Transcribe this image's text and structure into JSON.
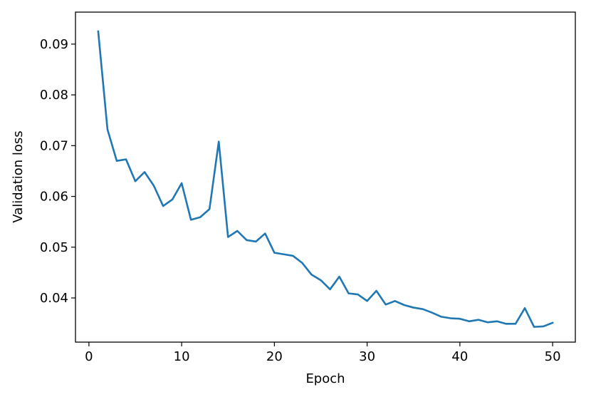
{
  "chart_data": {
    "type": "line",
    "title": "",
    "xlabel": "Epoch",
    "ylabel": "Validation loss",
    "xlim": [
      -1.45,
      52.45
    ],
    "ylim": [
      0.0313,
      0.0963
    ],
    "xticks": [
      0,
      10,
      20,
      30,
      40,
      50
    ],
    "xtick_labels": [
      "0",
      "10",
      "20",
      "30",
      "40",
      "50"
    ],
    "yticks": [
      0.04,
      0.05,
      0.06,
      0.07,
      0.08,
      0.09
    ],
    "ytick_labels": [
      "0.04",
      "0.05",
      "0.06",
      "0.07",
      "0.08",
      "0.09"
    ],
    "grid": false,
    "legend": "none",
    "series": [
      {
        "color": "#1f77b4",
        "x": [
          1,
          2,
          3,
          4,
          5,
          6,
          7,
          8,
          9,
          10,
          11,
          12,
          13,
          14,
          15,
          16,
          17,
          18,
          19,
          20,
          21,
          22,
          23,
          24,
          25,
          26,
          27,
          28,
          29,
          30,
          31,
          32,
          33,
          34,
          35,
          36,
          37,
          38,
          39,
          40,
          41,
          42,
          43,
          44,
          45,
          46,
          47,
          48,
          49,
          50
        ],
        "y": [
          0.0925,
          0.0732,
          0.067,
          0.0673,
          0.063,
          0.0648,
          0.0621,
          0.0581,
          0.0594,
          0.0626,
          0.0554,
          0.0559,
          0.0575,
          0.0708,
          0.052,
          0.0532,
          0.0514,
          0.0511,
          0.0527,
          0.0489,
          0.0486,
          0.0483,
          0.0469,
          0.0446,
          0.0435,
          0.0417,
          0.0442,
          0.0409,
          0.0407,
          0.0394,
          0.0414,
          0.0387,
          0.0394,
          0.0386,
          0.0381,
          0.0378,
          0.0371,
          0.0363,
          0.036,
          0.0359,
          0.0354,
          0.0357,
          0.0352,
          0.0354,
          0.0349,
          0.0349,
          0.038,
          0.0343,
          0.0344,
          0.0351
        ]
      }
    ]
  }
}
